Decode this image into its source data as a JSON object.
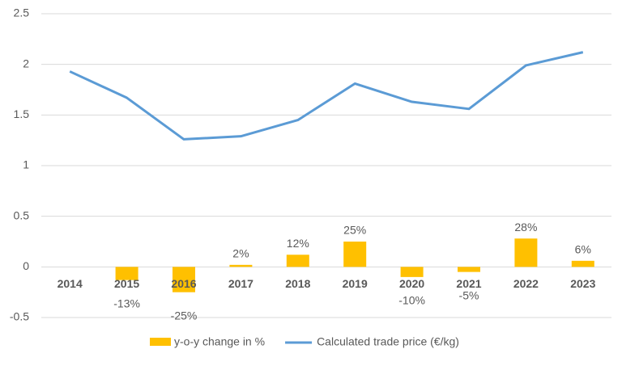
{
  "chart_data": {
    "type": "combo",
    "categories": [
      "2014",
      "2015",
      "2016",
      "2017",
      "2018",
      "2019",
      "2020",
      "2021",
      "2022",
      "2023"
    ],
    "series": [
      {
        "name": "y-o-y  change in %",
        "type": "bar",
        "color": "#ffc000",
        "values": [
          null,
          -0.13,
          -0.25,
          0.02,
          0.12,
          0.25,
          -0.1,
          -0.05,
          0.28,
          0.06
        ],
        "value_labels": [
          null,
          "-13%",
          "-25%",
          "2%",
          "12%",
          "25%",
          "-10%",
          "-5%",
          "28%",
          "6%"
        ]
      },
      {
        "name": "Calculated trade price (€/kg)",
        "type": "line",
        "color": "#5b9bd5",
        "values": [
          1.93,
          1.67,
          1.26,
          1.29,
          1.45,
          1.81,
          1.63,
          1.56,
          1.99,
          2.12
        ]
      }
    ],
    "ylim": [
      -0.5,
      2.5
    ],
    "yticks": [
      -0.5,
      0,
      0.5,
      1,
      1.5,
      2,
      2.5
    ],
    "grid": true,
    "legend": "bottom"
  }
}
